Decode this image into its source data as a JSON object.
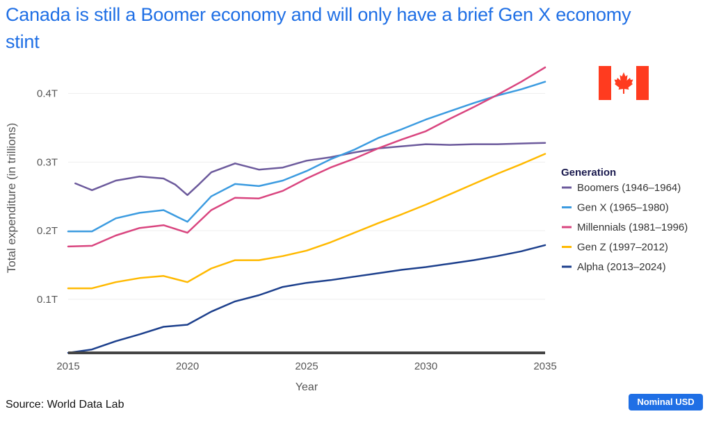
{
  "title": "Canada is still a Boomer economy and will only have a brief Gen X economy stint",
  "source": "Source: World Data Lab",
  "badge": "Nominal USD",
  "flag_icon": "canada-flag-icon",
  "colors": {
    "title": "#1f6fe5",
    "badge_bg": "#1f6fe5",
    "flag_red": "#ff3b1f"
  },
  "chart_data": {
    "type": "line",
    "xlabel": "Year",
    "ylabel": "Total expenditure (in trillions)",
    "xlim": [
      2015,
      2035
    ],
    "ylim": [
      0.022,
      0.44
    ],
    "x_ticks": [
      2015,
      2020,
      2025,
      2030,
      2035
    ],
    "x_tick_labels": [
      "2015",
      "2020",
      "2025",
      "2030",
      "2035"
    ],
    "y_ticks": [
      0.1,
      0.2,
      0.3,
      0.4
    ],
    "y_tick_labels": [
      "0.1T",
      "0.2T",
      "0.3T",
      "0.4T"
    ],
    "grid": true,
    "legend_title": "Generation",
    "legend_position": "right",
    "x": [
      2015,
      2016,
      2017,
      2018,
      2019,
      2020,
      2021,
      2022,
      2023,
      2024,
      2025,
      2026,
      2027,
      2028,
      2029,
      2030,
      2031,
      2032,
      2033,
      2034,
      2035
    ],
    "series": [
      {
        "name": "Boomers (1946–1964)",
        "color": "#6c5a9c",
        "x": [
          2015.3,
          2016,
          2017,
          2018,
          2019,
          2019.5,
          2020,
          2020.5,
          2021,
          2022,
          2023,
          2024,
          2025,
          2026,
          2027,
          2028,
          2029,
          2030,
          2031,
          2032,
          2033,
          2034,
          2035
        ],
        "values": [
          0.269,
          0.259,
          0.273,
          0.279,
          0.276,
          0.267,
          0.252,
          0.268,
          0.285,
          0.298,
          0.289,
          0.292,
          0.302,
          0.307,
          0.314,
          0.32,
          0.323,
          0.326,
          0.325,
          0.326,
          0.326,
          0.327,
          0.328
        ]
      },
      {
        "name": "Gen X (1965–1980)",
        "color": "#3b9be0",
        "x": [
          2015,
          2016,
          2017,
          2018,
          2019,
          2020,
          2021,
          2022,
          2023,
          2024,
          2025,
          2026,
          2027,
          2028,
          2029,
          2030,
          2031,
          2032,
          2033,
          2034,
          2035
        ],
        "values": [
          0.199,
          0.199,
          0.218,
          0.226,
          0.23,
          0.213,
          0.25,
          0.268,
          0.265,
          0.273,
          0.287,
          0.304,
          0.318,
          0.335,
          0.348,
          0.362,
          0.374,
          0.386,
          0.397,
          0.406,
          0.417
        ]
      },
      {
        "name": "Millennials (1981–1996)",
        "color": "#d9457f",
        "x": [
          2015,
          2016,
          2017,
          2018,
          2019,
          2020,
          2021,
          2022,
          2023,
          2024,
          2025,
          2026,
          2027,
          2028,
          2029,
          2030,
          2031,
          2032,
          2033,
          2034,
          2035
        ],
        "values": [
          0.177,
          0.178,
          0.193,
          0.204,
          0.208,
          0.197,
          0.23,
          0.248,
          0.247,
          0.258,
          0.276,
          0.292,
          0.305,
          0.32,
          0.333,
          0.345,
          0.363,
          0.38,
          0.398,
          0.417,
          0.438
        ]
      },
      {
        "name": "Gen Z (1997–2012)",
        "color": "#ffb900",
        "x": [
          2015,
          2016,
          2017,
          2018,
          2019,
          2020,
          2021,
          2022,
          2023,
          2024,
          2025,
          2026,
          2027,
          2028,
          2029,
          2030,
          2031,
          2032,
          2033,
          2034,
          2035
        ],
        "values": [
          0.116,
          0.116,
          0.125,
          0.131,
          0.134,
          0.125,
          0.145,
          0.157,
          0.157,
          0.163,
          0.171,
          0.183,
          0.197,
          0.211,
          0.224,
          0.238,
          0.253,
          0.268,
          0.283,
          0.297,
          0.312
        ]
      },
      {
        "name": "Alpha (2013–2024)",
        "color": "#1c3f8c",
        "x": [
          2015,
          2016,
          2017,
          2018,
          2019,
          2020,
          2021,
          2022,
          2023,
          2024,
          2025,
          2026,
          2027,
          2028,
          2029,
          2030,
          2031,
          2032,
          2033,
          2034,
          2035
        ],
        "values": [
          0.022,
          0.027,
          0.039,
          0.049,
          0.06,
          0.063,
          0.082,
          0.097,
          0.106,
          0.118,
          0.124,
          0.128,
          0.133,
          0.138,
          0.143,
          0.147,
          0.152,
          0.157,
          0.163,
          0.17,
          0.179
        ]
      }
    ]
  }
}
